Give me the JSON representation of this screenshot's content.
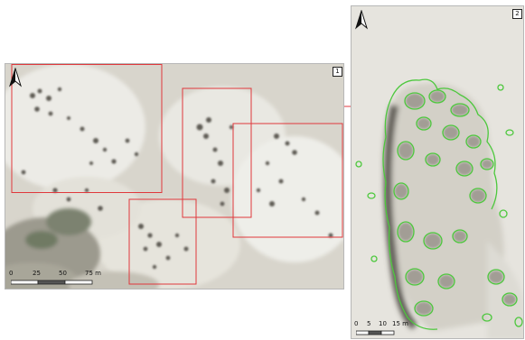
{
  "colors": {
    "extent_box": "#e0383c",
    "outline": "#4dc83d",
    "sand_light": "#e8e6e0",
    "sand": "#d6d3c9",
    "shrub_dark": "#5a5650",
    "veg_green": "#6f7a64"
  },
  "overview_map": {
    "panel_number": "1",
    "north_icon": "north-arrow-icon",
    "scalebar": {
      "labels": [
        "0",
        "25",
        "50",
        "75 m"
      ],
      "segments": [
        0,
        25,
        50,
        75
      ],
      "unit": "m"
    },
    "extent_boxes": [
      "survey-area-1",
      "survey-area-2",
      "survey-area-3",
      "survey-area-4",
      "survey-area-5"
    ]
  },
  "detail_map": {
    "panel_number": "2",
    "north_icon": "north-arrow-icon",
    "scalebar": {
      "labels": [
        "0",
        "5",
        "10",
        "15 m"
      ],
      "segments": [
        0,
        5,
        10,
        15
      ],
      "unit": "m"
    },
    "outlined_features": "shrub-patches"
  }
}
